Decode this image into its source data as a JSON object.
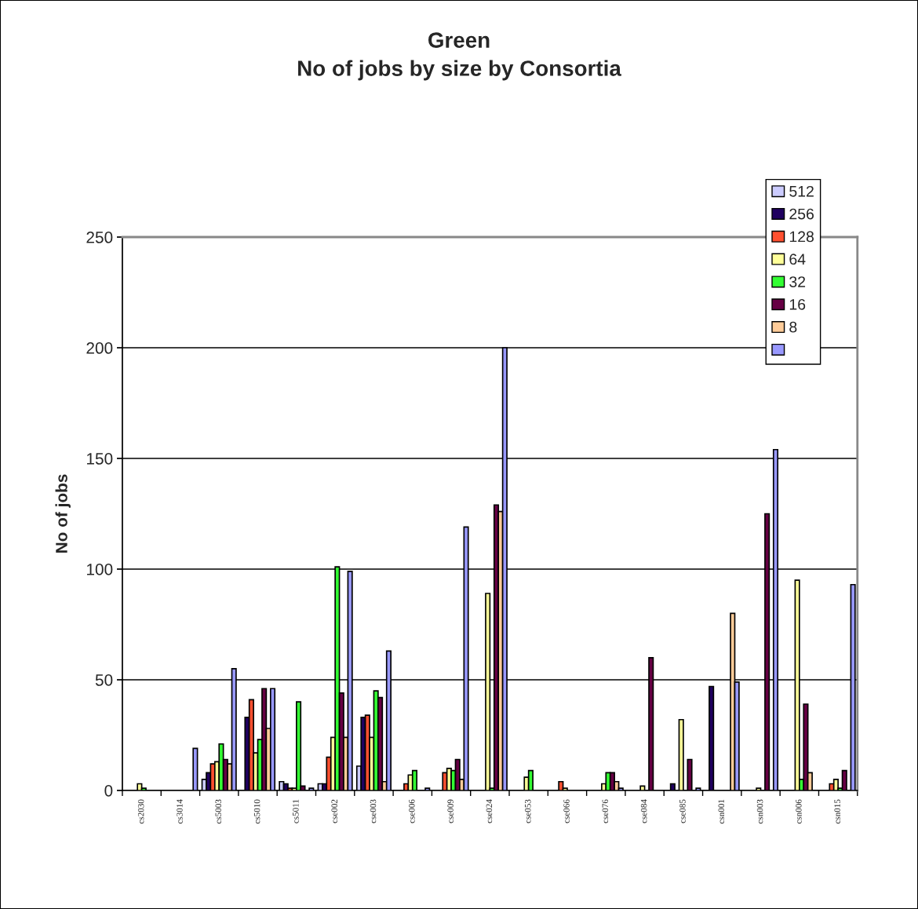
{
  "chart_data": {
    "type": "bar",
    "title": "Green\nNo of jobs by size by Consortia",
    "ylabel": "No of jobs",
    "categories": [
      "cs2030",
      "cs3014",
      "cs5003",
      "cs5010",
      "cs5011",
      "cse002",
      "cse003",
      "cse006",
      "cse009",
      "cse024",
      "cse053",
      "cse066",
      "cse076",
      "cse084",
      "cse085",
      "csn001",
      "csn003",
      "csn006",
      "csn015"
    ],
    "series": [
      {
        "name": "512",
        "color": "#ccccff",
        "values": [
          null,
          null,
          5,
          null,
          4,
          3,
          11,
          null,
          null,
          null,
          null,
          null,
          null,
          null,
          null,
          null,
          null,
          null,
          null
        ]
      },
      {
        "name": "256",
        "color": "#200060",
        "values": [
          null,
          null,
          8,
          33,
          3,
          3,
          33,
          null,
          null,
          null,
          null,
          null,
          null,
          null,
          3,
          47,
          null,
          null,
          null
        ]
      },
      {
        "name": "128",
        "color": "#ff5030",
        "values": [
          null,
          null,
          12,
          41,
          1,
          15,
          34,
          3,
          8,
          null,
          null,
          4,
          null,
          null,
          null,
          null,
          null,
          null,
          3
        ]
      },
      {
        "name": "64",
        "color": "#ffff99",
        "values": [
          3,
          null,
          13,
          17,
          1,
          24,
          24,
          7,
          10,
          89,
          6,
          1,
          3,
          2,
          32,
          null,
          1,
          95,
          5
        ]
      },
      {
        "name": "32",
        "color": "#33ff33",
        "values": [
          1,
          null,
          21,
          23,
          40,
          101,
          45,
          9,
          9,
          1,
          9,
          null,
          8,
          null,
          null,
          null,
          null,
          5,
          1
        ]
      },
      {
        "name": "16",
        "color": "#660044",
        "values": [
          null,
          null,
          14,
          46,
          2,
          44,
          42,
          null,
          14,
          129,
          null,
          null,
          8,
          60,
          14,
          null,
          125,
          39,
          9
        ]
      },
      {
        "name": "8",
        "color": "#ffcc99",
        "values": [
          null,
          null,
          12,
          28,
          null,
          24,
          4,
          null,
          5,
          126,
          null,
          null,
          4,
          null,
          null,
          80,
          null,
          8,
          null
        ]
      },
      {
        "color": "#9999ff",
        "values": [
          null,
          19,
          55,
          46,
          1,
          99,
          63,
          1,
          119,
          200,
          null,
          null,
          1,
          null,
          1,
          49,
          154,
          null,
          93
        ]
      }
    ],
    "ylim": [
      0,
      250
    ],
    "yticks": [
      0,
      50,
      100,
      150,
      200,
      250
    ],
    "grid": "y",
    "legend": "top right"
  }
}
